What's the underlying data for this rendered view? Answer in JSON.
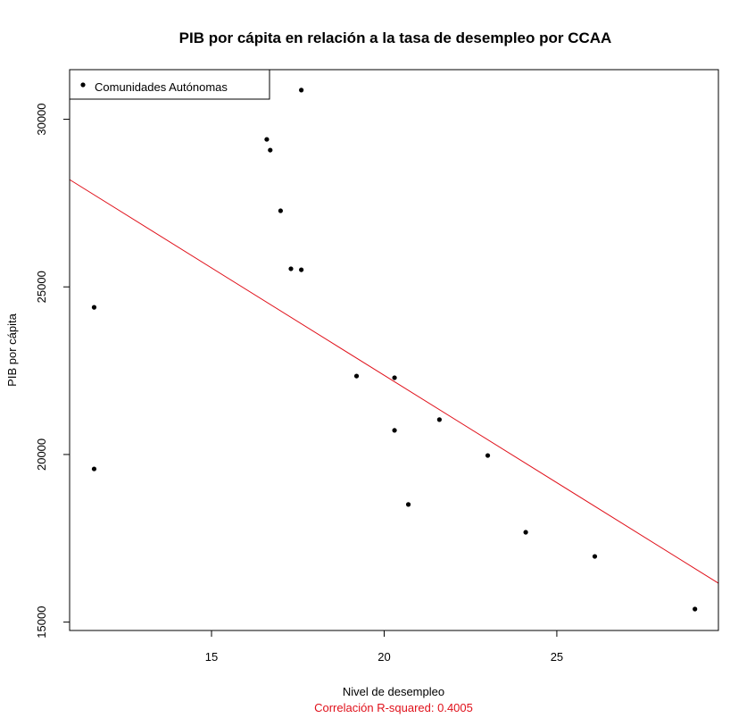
{
  "chart_data": {
    "type": "scatter",
    "title": "PIB por cápita en relación a la tasa de desempleo por CCAA",
    "xlabel": "Nivel de desempleo",
    "ylabel": "PIB por cápita",
    "subtitle": "Correlación R-squared:  0.4005",
    "subtitle_color": "#e0101a",
    "xlim": [
      10.89,
      29.68
    ],
    "ylim": [
      14750,
      31480
    ],
    "x_ticks": [
      15,
      20,
      25
    ],
    "y_ticks": [
      15000,
      20000,
      25000,
      30000
    ],
    "x_tick_labels": [
      "15",
      "20",
      "25"
    ],
    "y_tick_labels": [
      "15000",
      "20000",
      "25000",
      "30000"
    ],
    "grid": false,
    "legend": {
      "position": "top-left",
      "entries": [
        "Comunidades Autónomas"
      ]
    },
    "series": [
      {
        "name": "Comunidades Autónomas",
        "color": "#000000",
        "points": [
          {
            "x": 17.6,
            "y": 30870
          },
          {
            "x": 16.6,
            "y": 29400
          },
          {
            "x": 16.7,
            "y": 29080
          },
          {
            "x": 17.0,
            "y": 27270
          },
          {
            "x": 17.3,
            "y": 25540
          },
          {
            "x": 17.6,
            "y": 25510
          },
          {
            "x": 11.6,
            "y": 24390
          },
          {
            "x": 11.6,
            "y": 19570
          },
          {
            "x": 19.2,
            "y": 22340
          },
          {
            "x": 20.3,
            "y": 22290
          },
          {
            "x": 20.3,
            "y": 20720
          },
          {
            "x": 21.6,
            "y": 21040
          },
          {
            "x": 20.7,
            "y": 18510
          },
          {
            "x": 23.0,
            "y": 19970
          },
          {
            "x": 24.1,
            "y": 17680
          },
          {
            "x": 26.1,
            "y": 16960
          },
          {
            "x": 29.0,
            "y": 15390
          }
        ]
      }
    ],
    "regression_line": {
      "color": "#e0101a",
      "x0": 10.89,
      "y0": 28200,
      "x1": 29.68,
      "y1": 16160
    }
  }
}
